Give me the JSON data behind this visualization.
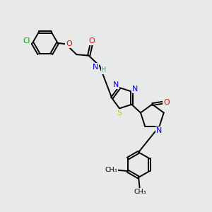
{
  "background_color": "#e8eaea",
  "atom_colors": {
    "C": "#000000",
    "H": "#4a9a8a",
    "N": "#0000ff",
    "O": "#ff0000",
    "S": "#cccc00",
    "Cl": "#00aa00"
  },
  "bond_color": "#000000",
  "bond_width": 1.4,
  "figsize": [
    3.0,
    3.0
  ],
  "dpi": 100
}
